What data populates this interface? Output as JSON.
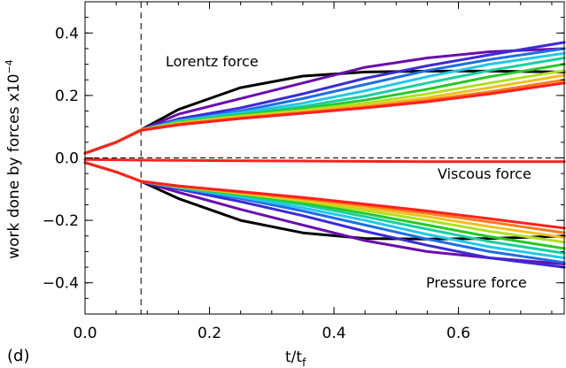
{
  "chart_data": {
    "type": "line",
    "panel_label": "(d)",
    "xlabel_main": "t/t",
    "xlabel_sub": "f",
    "ylabel_main": "work done by forces x10",
    "ylabel_exp": "−4",
    "xlim": [
      0.0,
      0.77
    ],
    "ylim": [
      -0.5,
      0.5
    ],
    "x_ticks": [
      0.0,
      0.2,
      0.4,
      0.6
    ],
    "x_tick_labels": [
      "0.0",
      "0.2",
      "0.4",
      "0.6"
    ],
    "y_ticks": [
      0.4,
      0.2,
      0.0,
      -0.2,
      -0.4
    ],
    "y_tick_labels": [
      "0.4",
      "0.2",
      "0.0",
      "−0.2",
      "−0.4"
    ],
    "vline_x": 0.09,
    "hline_y": 0.0,
    "annotations": {
      "lorentz": "Lorentz force",
      "viscous": "Viscous force",
      "pressure": "Pressure force"
    },
    "colors": [
      "#000000",
      "#6a0dad",
      "#3b2bd6",
      "#1e6fe6",
      "#22c8e8",
      "#18d0a0",
      "#28c828",
      "#b0e020",
      "#f0c020",
      "#ff7a1a",
      "#ff2020"
    ],
    "x_samples": [
      0.0,
      0.05,
      0.09,
      0.15,
      0.25,
      0.35,
      0.45,
      0.55,
      0.65,
      0.77
    ],
    "lorentz_series": [
      [
        0.015,
        0.05,
        0.09,
        0.155,
        0.225,
        0.262,
        0.275,
        0.278,
        0.278,
        0.275
      ],
      [
        0.015,
        0.05,
        0.09,
        0.14,
        0.19,
        0.24,
        0.29,
        0.32,
        0.34,
        0.35
      ],
      [
        0.015,
        0.05,
        0.09,
        0.125,
        0.16,
        0.205,
        0.255,
        0.295,
        0.33,
        0.37
      ],
      [
        0.015,
        0.05,
        0.09,
        0.12,
        0.15,
        0.19,
        0.235,
        0.28,
        0.315,
        0.35
      ],
      [
        0.015,
        0.05,
        0.09,
        0.118,
        0.145,
        0.175,
        0.215,
        0.26,
        0.3,
        0.335
      ],
      [
        0.015,
        0.05,
        0.09,
        0.116,
        0.14,
        0.165,
        0.198,
        0.24,
        0.28,
        0.32
      ],
      [
        0.015,
        0.05,
        0.09,
        0.114,
        0.137,
        0.158,
        0.185,
        0.22,
        0.26,
        0.3
      ],
      [
        0.015,
        0.05,
        0.09,
        0.112,
        0.134,
        0.152,
        0.175,
        0.205,
        0.24,
        0.28
      ],
      [
        0.015,
        0.05,
        0.09,
        0.11,
        0.131,
        0.148,
        0.168,
        0.193,
        0.225,
        0.265
      ],
      [
        0.015,
        0.05,
        0.09,
        0.108,
        0.128,
        0.145,
        0.163,
        0.185,
        0.212,
        0.25
      ],
      [
        0.015,
        0.05,
        0.088,
        0.106,
        0.126,
        0.143,
        0.16,
        0.18,
        0.205,
        0.24
      ]
    ],
    "pressure_series": [
      [
        -0.015,
        -0.045,
        -0.075,
        -0.13,
        -0.2,
        -0.24,
        -0.258,
        -0.26,
        -0.258,
        -0.25
      ],
      [
        -0.015,
        -0.045,
        -0.075,
        -0.11,
        -0.165,
        -0.215,
        -0.265,
        -0.3,
        -0.32,
        -0.34
      ],
      [
        -0.015,
        -0.045,
        -0.075,
        -0.1,
        -0.14,
        -0.185,
        -0.235,
        -0.28,
        -0.32,
        -0.35
      ],
      [
        -0.015,
        -0.045,
        -0.075,
        -0.097,
        -0.13,
        -0.17,
        -0.215,
        -0.26,
        -0.3,
        -0.335
      ],
      [
        -0.015,
        -0.045,
        -0.075,
        -0.095,
        -0.125,
        -0.16,
        -0.2,
        -0.245,
        -0.285,
        -0.32
      ],
      [
        -0.015,
        -0.045,
        -0.075,
        -0.094,
        -0.12,
        -0.15,
        -0.188,
        -0.228,
        -0.268,
        -0.305
      ],
      [
        -0.015,
        -0.045,
        -0.075,
        -0.093,
        -0.117,
        -0.144,
        -0.178,
        -0.215,
        -0.252,
        -0.29
      ],
      [
        -0.015,
        -0.045,
        -0.075,
        -0.092,
        -0.114,
        -0.138,
        -0.168,
        -0.2,
        -0.235,
        -0.27
      ],
      [
        -0.015,
        -0.045,
        -0.075,
        -0.091,
        -0.112,
        -0.134,
        -0.16,
        -0.188,
        -0.22,
        -0.255
      ],
      [
        -0.015,
        -0.045,
        -0.075,
        -0.09,
        -0.11,
        -0.13,
        -0.153,
        -0.178,
        -0.205,
        -0.24
      ],
      [
        -0.015,
        -0.045,
        -0.075,
        -0.09,
        -0.108,
        -0.127,
        -0.148,
        -0.17,
        -0.195,
        -0.225
      ]
    ],
    "viscous_series": [
      [
        -0.005,
        -0.006,
        -0.007,
        -0.008,
        -0.009,
        -0.01,
        -0.011,
        -0.012,
        -0.012,
        -0.012
      ]
    ]
  }
}
